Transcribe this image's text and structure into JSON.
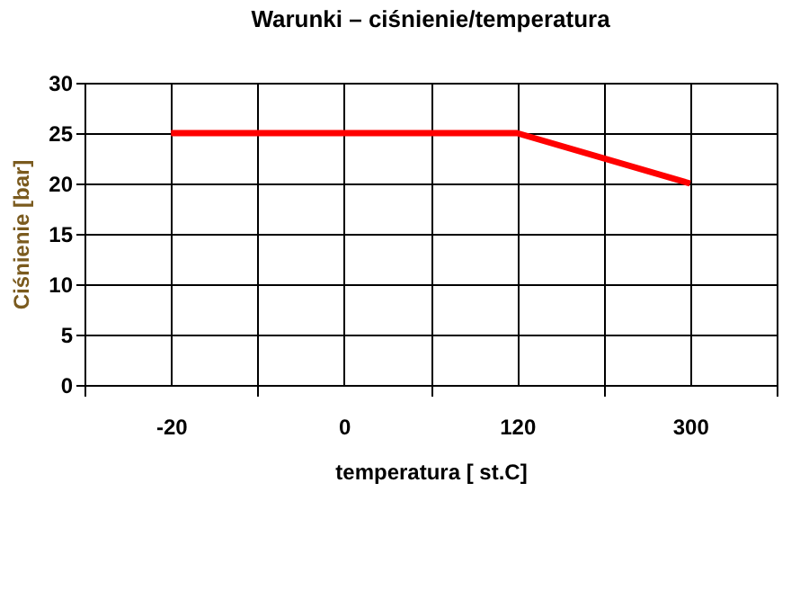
{
  "chart_data": {
    "type": "line",
    "title": "Warunki – ciśnienie/temperatura",
    "xlabel": "temperatura [ st.C]",
    "ylabel": "Ciśnienie [bar]",
    "categories": [
      "-20",
      "0",
      "120",
      "300"
    ],
    "series": [
      {
        "color": "#ff0000",
        "values": [
          25,
          25,
          25,
          20
        ]
      }
    ],
    "ylim": [
      0,
      30
    ],
    "yticks": [
      0,
      5,
      10,
      15,
      20,
      25,
      30
    ],
    "grid": true,
    "legend": false,
    "marker": "none",
    "line_style": "solid"
  }
}
